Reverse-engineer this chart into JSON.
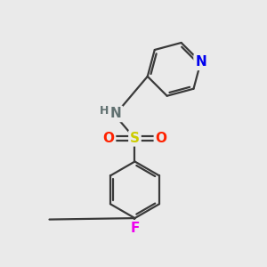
{
  "bg_color": "#eaeaea",
  "bond_color": "#3a3a3a",
  "bond_width": 1.6,
  "atom_colors": {
    "N_pyridine": "#0000ee",
    "N_amine": "#607070",
    "S": "#cccc00",
    "O": "#ff2200",
    "F": "#ee00ee",
    "H": "#607070",
    "C": "#3a3a3a"
  },
  "font_size_atoms": 11,
  "font_size_H": 9
}
